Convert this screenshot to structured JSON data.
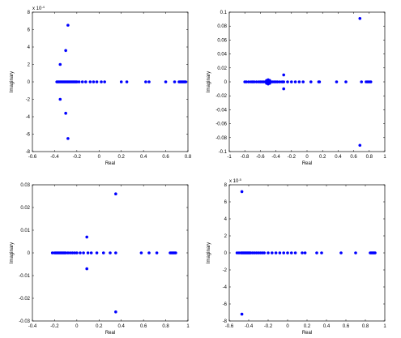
{
  "chart_data": [
    {
      "type": "scatter",
      "xlabel": "Real",
      "ylabel": "Imaginary",
      "color": "#0000ff",
      "y_multiplier": {
        "base": "x 10",
        "exponent": "-4"
      },
      "xlim": [
        -0.6,
        0.8
      ],
      "xticks": [
        -0.6,
        -0.4,
        -0.2,
        0,
        0.2,
        0.4,
        0.6,
        0.8
      ],
      "ylim": [
        -8,
        8
      ],
      "yticks": [
        -8,
        -6,
        -4,
        -2,
        0,
        2,
        4,
        6,
        8
      ],
      "x": [
        -0.38,
        -0.37,
        -0.36,
        -0.35,
        -0.34,
        -0.33,
        -0.32,
        -0.31,
        -0.3,
        -0.29,
        -0.28,
        -0.27,
        -0.26,
        -0.25,
        -0.24,
        -0.23,
        -0.22,
        -0.21,
        -0.2,
        -0.18,
        -0.15,
        -0.12,
        -0.08,
        -0.05,
        -0.02,
        0.02,
        0.05,
        0.2,
        0.25,
        0.42,
        0.45,
        0.6,
        0.68,
        0.72,
        0.73,
        0.74,
        0.75,
        0.76,
        0.77,
        0.78,
        -0.35,
        -0.35,
        -0.3,
        -0.3,
        -0.28,
        -0.28
      ],
      "values": [
        0,
        0,
        0,
        0,
        0,
        0,
        0,
        0,
        0,
        0,
        0,
        0,
        0,
        0,
        0,
        0,
        0,
        0,
        0,
        0,
        0,
        0,
        0,
        0,
        0,
        0,
        0,
        0,
        0,
        0,
        0,
        0,
        0,
        0,
        0,
        0,
        0,
        0,
        0,
        0,
        2,
        -2,
        3.6,
        -3.6,
        6.5,
        -6.5
      ]
    },
    {
      "type": "scatter",
      "xlabel": "Real",
      "ylabel": "Imaginary",
      "color": "#0000ff",
      "xlim": [
        -1,
        1
      ],
      "xticks": [
        -1,
        -0.8,
        -0.6,
        -0.4,
        -0.2,
        0,
        0.2,
        0.4,
        0.6,
        0.8,
        1
      ],
      "ylim": [
        -0.1,
        0.1
      ],
      "yticks": [
        -0.1,
        -0.08,
        -0.06,
        -0.04,
        -0.02,
        0,
        0.02,
        0.04,
        0.06,
        0.08,
        0.1
      ],
      "x": [
        -0.8,
        -0.78,
        -0.75,
        -0.72,
        -0.7,
        -0.68,
        -0.65,
        -0.62,
        -0.6,
        -0.58,
        -0.56,
        -0.54,
        -0.52,
        -0.5,
        -0.48,
        -0.46,
        -0.44,
        -0.42,
        -0.4,
        -0.38,
        -0.35,
        -0.32,
        -0.3,
        -0.25,
        -0.2,
        -0.15,
        -0.1,
        -0.05,
        0.05,
        0.15,
        0.16,
        0.38,
        0.5,
        0.7,
        0.76,
        0.78,
        0.8,
        0.82,
        -0.52,
        -0.52,
        -0.5,
        -0.5,
        -0.48,
        -0.48,
        -0.3,
        -0.3,
        0.68,
        0.68
      ],
      "values": [
        0,
        0,
        0,
        0,
        0,
        0,
        0,
        0,
        0,
        0,
        0,
        0,
        0,
        0,
        0,
        0,
        0,
        0,
        0,
        0,
        0,
        0,
        0,
        0,
        0,
        0,
        0,
        0,
        0,
        0,
        0,
        0,
        0,
        0,
        0,
        0,
        0,
        0,
        0.002,
        -0.002,
        0.003,
        -0.003,
        0.002,
        -0.002,
        0.01,
        -0.01,
        0.091,
        -0.091
      ]
    },
    {
      "type": "scatter",
      "xlabel": "Real",
      "ylabel": "Imaginary",
      "color": "#0000ff",
      "xlim": [
        -0.4,
        1
      ],
      "xticks": [
        -0.4,
        -0.2,
        0,
        0.2,
        0.4,
        0.6,
        0.8,
        1
      ],
      "ylim": [
        -0.03,
        0.03
      ],
      "yticks": [
        -0.03,
        -0.02,
        -0.01,
        0,
        0.01,
        0.02,
        0.03
      ],
      "x": [
        -0.22,
        -0.2,
        -0.19,
        -0.18,
        -0.17,
        -0.16,
        -0.15,
        -0.14,
        -0.13,
        -0.12,
        -0.11,
        -0.1,
        -0.08,
        -0.06,
        -0.04,
        -0.02,
        0,
        0.03,
        0.06,
        0.1,
        0.13,
        0.18,
        0.24,
        0.3,
        0.35,
        0.58,
        0.65,
        0.72,
        0.84,
        0.85,
        0.86,
        0.87,
        0.88,
        0.89,
        0.09,
        0.09,
        0.35,
        0.35
      ],
      "values": [
        0,
        0,
        0,
        0,
        0,
        0,
        0,
        0,
        0,
        0,
        0,
        0,
        0,
        0,
        0,
        0,
        0,
        0,
        0,
        0,
        0,
        0,
        0,
        0,
        0,
        0,
        0,
        0,
        0,
        0,
        0,
        0,
        0,
        0,
        0.007,
        -0.007,
        0.026,
        -0.026
      ]
    },
    {
      "type": "scatter",
      "xlabel": "Real",
      "ylabel": "Imaginary",
      "color": "#0000ff",
      "y_multiplier": {
        "base": "x 10",
        "exponent": "-5"
      },
      "xlim": [
        -0.6,
        1
      ],
      "xticks": [
        -0.6,
        -0.4,
        -0.2,
        0,
        0.2,
        0.4,
        0.6,
        0.8,
        1
      ],
      "ylim": [
        -8,
        8
      ],
      "yticks": [
        -8,
        -6,
        -4,
        -2,
        0,
        2,
        4,
        6,
        8
      ],
      "x": [
        -0.52,
        -0.5,
        -0.48,
        -0.47,
        -0.46,
        -0.45,
        -0.44,
        -0.43,
        -0.42,
        -0.41,
        -0.4,
        -0.39,
        -0.38,
        -0.36,
        -0.34,
        -0.32,
        -0.3,
        -0.28,
        -0.26,
        -0.24,
        -0.2,
        -0.16,
        -0.12,
        -0.08,
        -0.04,
        0,
        0.04,
        0.08,
        0.15,
        0.18,
        0.3,
        0.35,
        0.55,
        0.7,
        0.85,
        0.86,
        0.87,
        0.88,
        0.89,
        0.9,
        -0.47,
        -0.47
      ],
      "values": [
        0,
        0,
        0,
        0,
        0,
        0,
        0,
        0,
        0,
        0,
        0,
        0,
        0,
        0,
        0,
        0,
        0,
        0,
        0,
        0,
        0,
        0,
        0,
        0,
        0,
        0,
        0,
        0,
        0,
        0,
        0,
        0,
        0,
        0,
        0,
        0,
        0,
        0,
        0,
        0,
        7.2,
        -7.2
      ]
    }
  ]
}
